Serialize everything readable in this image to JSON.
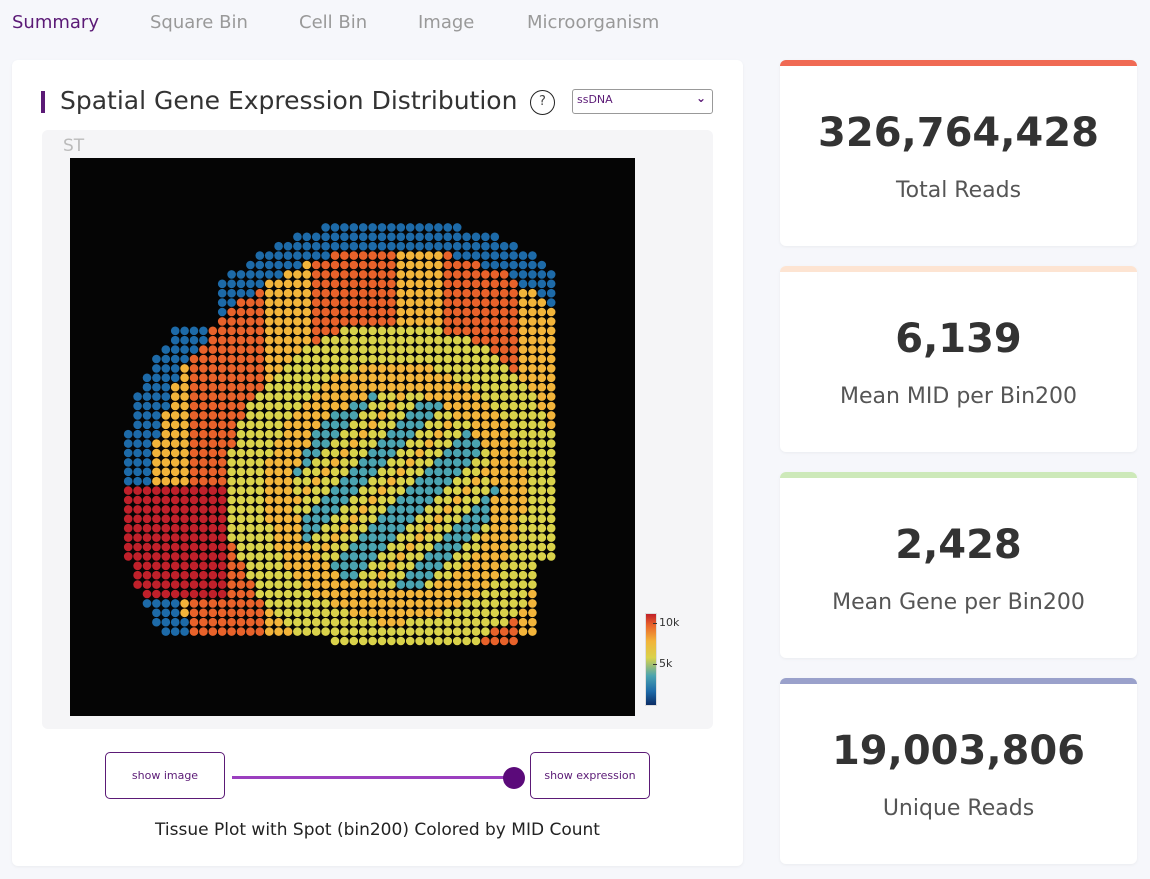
{
  "tabs": [
    {
      "label": "Summary",
      "active": true
    },
    {
      "label": "Square Bin",
      "active": false
    },
    {
      "label": "Cell Bin",
      "active": false
    },
    {
      "label": "Image",
      "active": false
    },
    {
      "label": "Microorganism",
      "active": false
    }
  ],
  "panel": {
    "title": "Spatial Gene Expression Distribution",
    "help_label": "?",
    "select_value": "ssDNA",
    "plot_label": "ST",
    "colorbar": {
      "ticks": [
        "10k",
        "5k"
      ],
      "colors": [
        "#0b2d66",
        "#1d6aa8",
        "#4aa3b0",
        "#d9d24a",
        "#f2b43a",
        "#e8622a",
        "#c0202a"
      ]
    },
    "show_image_label": "show image",
    "show_expression_label": "show expression",
    "toggle_position": 1,
    "caption": "Tissue Plot with Spot (bin200) Colored by MID Count"
  },
  "stats": [
    {
      "value": "326,764,428",
      "label": "Total Reads",
      "color": "#f06a54"
    },
    {
      "value": "6,139",
      "label": "Mean MID per Bin200",
      "color": "#fde4d2"
    },
    {
      "value": "2,428",
      "label": "Mean Gene per Bin200",
      "color": "#cde9b9"
    },
    {
      "value": "19,003,806",
      "label": "Unique Reads",
      "color": "#9aa1cb"
    }
  ]
}
